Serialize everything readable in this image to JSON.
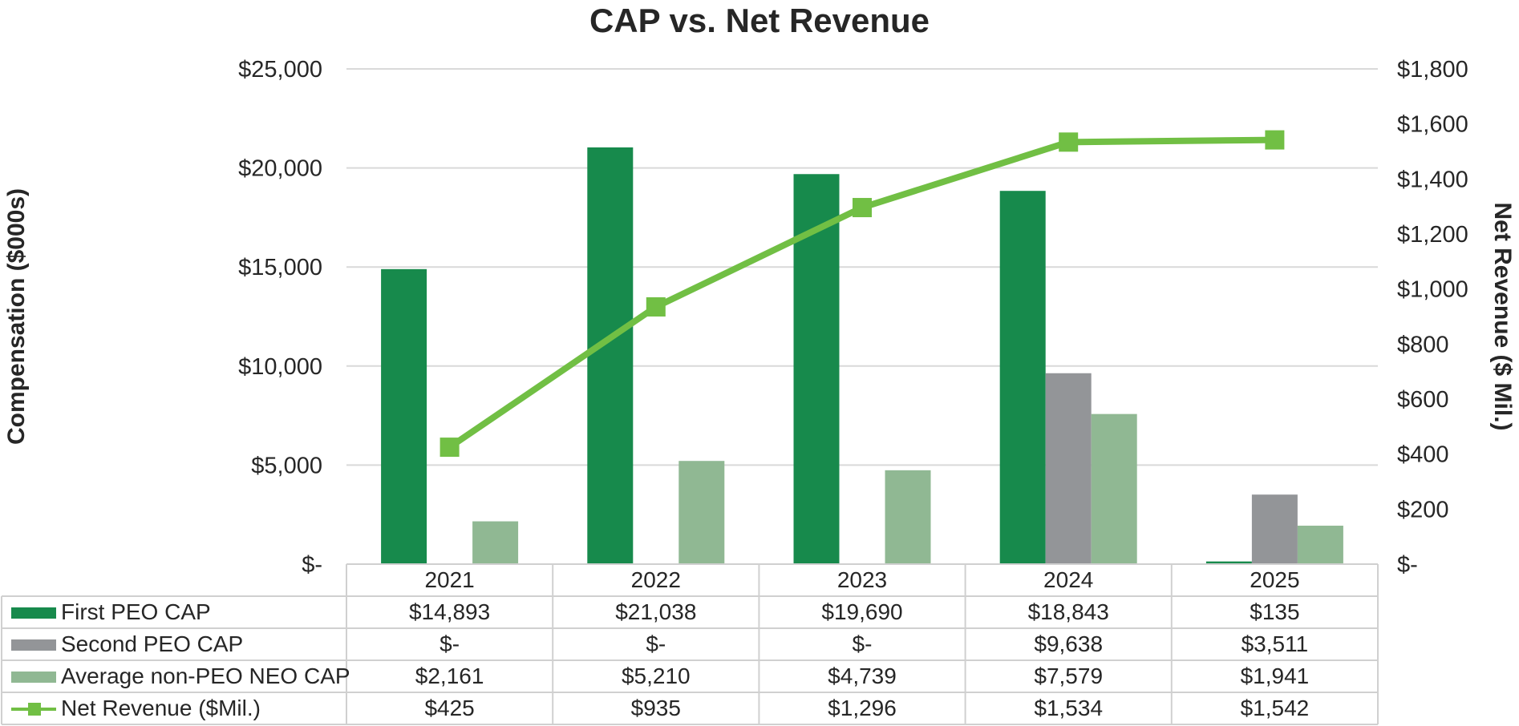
{
  "chart_data": {
    "type": "bar",
    "title": "CAP vs. Net Revenue",
    "ylabel": "Compensation ($000s)",
    "y2label": "Net Revenue ($ Mil.)",
    "ylim": [
      0,
      25000
    ],
    "y2lim": [
      0,
      1800
    ],
    "yticks": [
      "$-",
      "$5,000",
      "$10,000",
      "$15,000",
      "$20,000",
      "$25,000"
    ],
    "y2ticks": [
      "$-",
      "$200",
      "$400",
      "$600",
      "$800",
      "$1,000",
      "$1,200",
      "$1,400",
      "$1,600",
      "$1,800"
    ],
    "grid": true,
    "categories": [
      "2021",
      "2022",
      "2023",
      "2024",
      "2025"
    ],
    "series": [
      {
        "name": "First PEO CAP",
        "kind": "bar",
        "axis": "left",
        "color": "#178a4c",
        "values": [
          14893,
          21038,
          19690,
          18843,
          135
        ],
        "labels": [
          "$14,893",
          "$21,038",
          "$19,690",
          "$18,843",
          "$135"
        ]
      },
      {
        "name": "Second PEO CAP",
        "kind": "bar",
        "axis": "left",
        "color": "#939598",
        "values": [
          0,
          0,
          0,
          9638,
          3511
        ],
        "labels": [
          "$-",
          "$-",
          "$-",
          "$9,638",
          "$3,511"
        ]
      },
      {
        "name": "Average non-PEO NEO CAP",
        "kind": "bar",
        "axis": "left",
        "color": "#90b893",
        "values": [
          2161,
          5210,
          4739,
          7579,
          1941
        ],
        "labels": [
          "$2,161",
          "$5,210",
          "$4,739",
          "$7,579",
          "$1,941"
        ]
      },
      {
        "name": "Net Revenue ($Mil.)",
        "kind": "line",
        "axis": "right",
        "color": "#71bf44",
        "values": [
          425,
          935,
          1296,
          1534,
          1542
        ],
        "labels": [
          "$425",
          "$935",
          "$1,296",
          "$1,534",
          "$1,542"
        ]
      }
    ],
    "legend": "data-table-below"
  }
}
